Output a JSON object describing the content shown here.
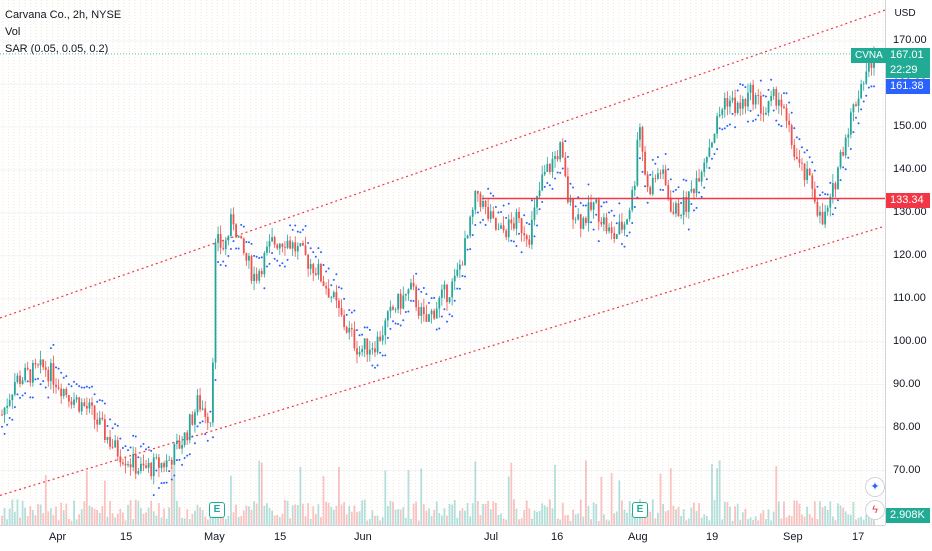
{
  "legend": {
    "title": "Carvana Co., 2h, NYSE",
    "vol": "Vol",
    "sar": "SAR (0.05, 0.05, 0.2)"
  },
  "currency": "USD",
  "price_scale": {
    "ticks": [
      "170.00",
      "160.00",
      "150.00",
      "140.00",
      "130.00",
      "120.00",
      "110.00",
      "100.00",
      "90.00",
      "80.00",
      "70.00"
    ],
    "last_price": "167.01",
    "countdown": "22:29",
    "symbol": "CVNA",
    "sar_value": "161.38",
    "hline_price": "133.34",
    "volume_value": "2.908K"
  },
  "time_scale": {
    "labels": [
      "Apr",
      "15",
      "May",
      "15",
      "Jun",
      "Jul",
      "16",
      "Aug",
      "19",
      "Sep",
      "17"
    ]
  },
  "earnings_badge": "E",
  "colors": {
    "up": "#26a69a",
    "down": "#ef5350",
    "sar": "#2962ff",
    "channel": "#f23645",
    "hline": "#f23645",
    "last_price_bg": "#22ab94",
    "sar_bg": "#2962ff"
  },
  "chart_data": {
    "type": "candlestick",
    "ylim": [
      65,
      178
    ],
    "channel": {
      "upper": [
        [
          0,
          105.5
        ],
        [
          1,
          177.2
        ]
      ],
      "lower": [
        [
          0,
          64.2
        ],
        [
          1,
          126.9
        ]
      ]
    },
    "horizontal_line": 133.34,
    "anchors": [
      [
        0,
        83
      ],
      [
        0.015,
        91
      ],
      [
        0.05,
        94
      ],
      [
        0.075,
        88
      ],
      [
        0.1,
        84
      ],
      [
        0.13,
        75
      ],
      [
        0.16,
        70
      ],
      [
        0.19,
        72
      ],
      [
        0.21,
        78
      ],
      [
        0.225,
        86
      ],
      [
        0.24,
        82
      ],
      [
        0.245,
        123
      ],
      [
        0.255,
        122
      ],
      [
        0.265,
        129
      ],
      [
        0.275,
        121
      ],
      [
        0.29,
        115
      ],
      [
        0.31,
        123
      ],
      [
        0.325,
        124
      ],
      [
        0.34,
        121
      ],
      [
        0.36,
        117
      ],
      [
        0.375,
        112
      ],
      [
        0.39,
        105
      ],
      [
        0.41,
        98
      ],
      [
        0.43,
        100
      ],
      [
        0.45,
        108
      ],
      [
        0.47,
        112
      ],
      [
        0.485,
        104
      ],
      [
        0.5,
        109
      ],
      [
        0.52,
        114
      ],
      [
        0.535,
        125
      ],
      [
        0.545,
        135
      ],
      [
        0.555,
        130
      ],
      [
        0.57,
        125
      ],
      [
        0.59,
        128
      ],
      [
        0.605,
        125
      ],
      [
        0.62,
        138
      ],
      [
        0.64,
        145
      ],
      [
        0.65,
        132
      ],
      [
        0.665,
        128
      ],
      [
        0.68,
        132
      ],
      [
        0.7,
        124
      ],
      [
        0.715,
        128
      ],
      [
        0.725,
        136
      ],
      [
        0.73,
        153
      ],
      [
        0.74,
        135
      ],
      [
        0.755,
        140
      ],
      [
        0.77,
        130
      ],
      [
        0.785,
        132
      ],
      [
        0.8,
        140
      ],
      [
        0.815,
        148
      ],
      [
        0.83,
        157
      ],
      [
        0.845,
        154
      ],
      [
        0.86,
        158
      ],
      [
        0.875,
        153
      ],
      [
        0.89,
        158
      ],
      [
        0.9,
        150
      ],
      [
        0.915,
        140
      ],
      [
        0.93,
        136
      ],
      [
        0.94,
        127
      ],
      [
        0.95,
        132
      ],
      [
        0.96,
        142
      ],
      [
        0.97,
        150
      ],
      [
        0.985,
        160
      ],
      [
        1,
        167
      ]
    ],
    "last_close": 167.01
  }
}
